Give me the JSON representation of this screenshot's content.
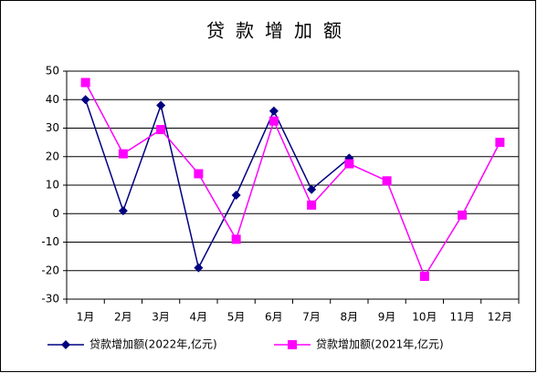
{
  "chart_data": {
    "type": "line",
    "title": "贷款增加额",
    "categories": [
      "1月",
      "2月",
      "3月",
      "4月",
      "5月",
      "6月",
      "7月",
      "8月",
      "9月",
      "10月",
      "11月",
      "12月"
    ],
    "series": [
      {
        "name": "贷款增加额(2022年,亿元)",
        "color": "#000080",
        "marker": "diamond",
        "values": [
          40,
          1,
          38,
          -19,
          6.5,
          36,
          8.5,
          19.5,
          null,
          null,
          null,
          null
        ]
      },
      {
        "name": "贷款增加额(2021年,亿元)",
        "color": "#ff00ff",
        "marker": "square",
        "values": [
          46,
          21,
          29.5,
          14,
          -9,
          32.5,
          3,
          17.5,
          11.5,
          -22,
          -0.5,
          25
        ]
      }
    ],
    "ylim": [
      -30,
      50
    ],
    "yticks": [
      -30,
      -20,
      -10,
      0,
      10,
      20,
      30,
      40,
      50
    ],
    "grid": true,
    "legend": "bottom"
  }
}
